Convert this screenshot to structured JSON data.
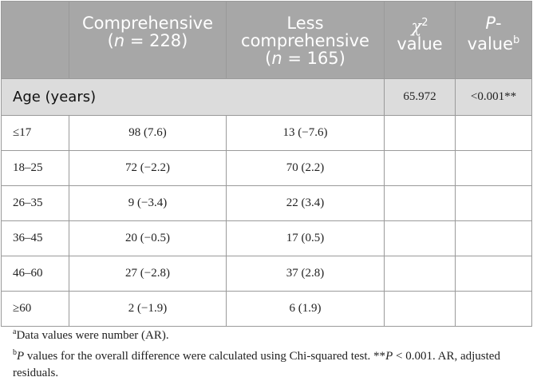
{
  "header": {
    "col1": "",
    "col2_line1": "Comprehensive",
    "col2_n_open": "(",
    "col2_n_var": "n",
    "col2_n_rest": " = 228)",
    "col3_line1": "Less",
    "col3_line2": "comprehensive",
    "col3_n_open": "(",
    "col3_n_var": "n",
    "col3_n_rest": " = 165)",
    "col4_symbol": "χ",
    "col4_sup": "2",
    "col4_line2": "value",
    "col5_var": "P",
    "col5_dash": "-",
    "col5_line2": "value",
    "col5_sup": "b"
  },
  "group": {
    "label": "Age (years)",
    "chi2": "65.972",
    "p": "<0.001**"
  },
  "rows": [
    {
      "label": "≤17",
      "comprehensive": "98 (7.6)",
      "less": "13 (−7.6)"
    },
    {
      "label": "18–25",
      "comprehensive": "72 (−2.2)",
      "less": "70 (2.2)"
    },
    {
      "label": "26–35",
      "comprehensive": "9 (−3.4)",
      "less": "22 (3.4)"
    },
    {
      "label": "36–45",
      "comprehensive": "20 (−0.5)",
      "less": "17 (0.5)"
    },
    {
      "label": "46–60",
      "comprehensive": "27 (−2.8)",
      "less": "37 (2.8)"
    },
    {
      "label": "≥60",
      "comprehensive": "2 (−1.9)",
      "less": "6 (1.9)"
    }
  ],
  "footnotes": {
    "a_mark": "a",
    "a_text": "Data values were number (AR).",
    "b_mark": "b",
    "b_var": "P",
    "b_text1": " values for the overall difference were calculated using Chi-squared test. **",
    "b_var2": "P",
    "b_text2": " < 0.001. AR, adjusted residuals."
  }
}
